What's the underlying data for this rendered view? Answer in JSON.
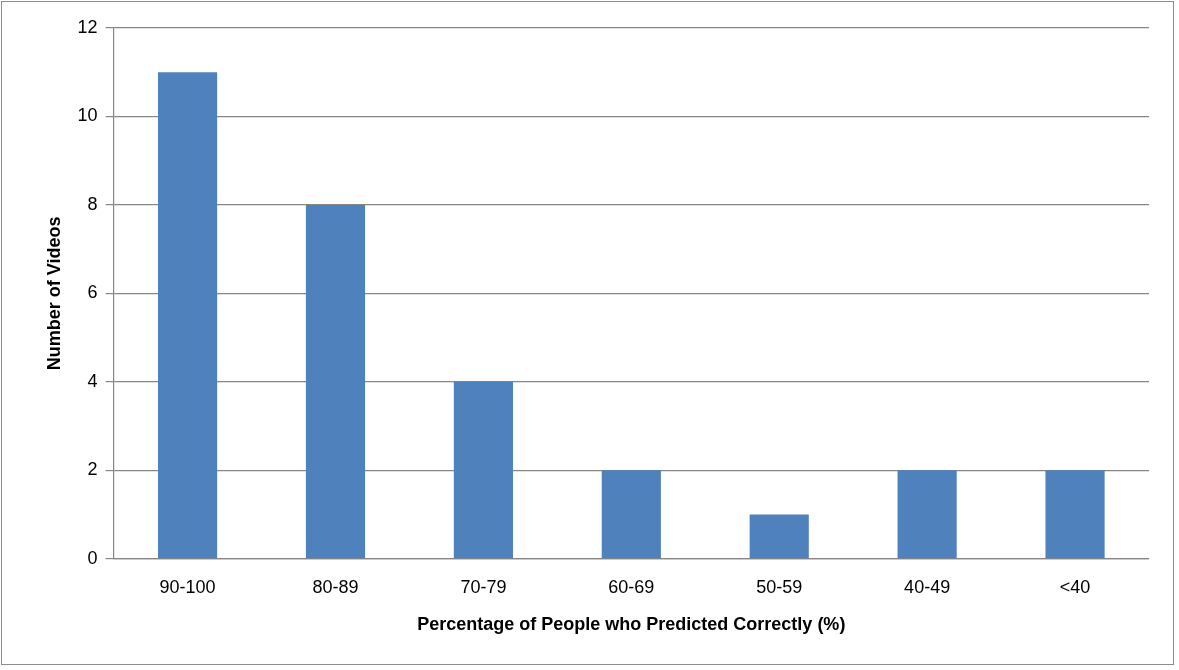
{
  "chart_data": {
    "type": "bar",
    "xlabel": "Percentage of People who Predicted Correctly (%)",
    "ylabel": "Number of Videos",
    "categories": [
      "90-100",
      "80-89",
      "70-79",
      "60-69",
      "50-59",
      "40-49",
      "<40"
    ],
    "values": [
      11,
      8,
      4,
      2,
      1,
      2,
      2
    ],
    "color": "#4f81bd",
    "ylim": [
      0,
      12
    ],
    "yticks": [
      0,
      2,
      4,
      6,
      8,
      10,
      12
    ],
    "grid": "y",
    "legend": false
  }
}
